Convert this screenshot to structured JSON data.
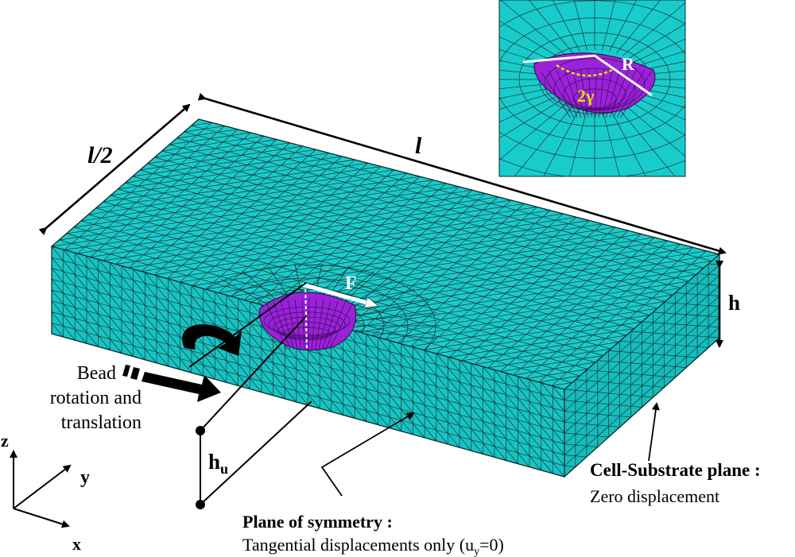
{
  "dimensions": {
    "length": "l",
    "half_width": "l/2",
    "height": "h",
    "bead_height": "h",
    "bead_height_sub": "u"
  },
  "force": {
    "label": "F"
  },
  "bead_action": {
    "line1": "Bead",
    "line2": "rotation and",
    "line3": "translation"
  },
  "axes": {
    "z": "z",
    "y": "y",
    "x": "x"
  },
  "inset": {
    "radius": "R",
    "angle": "2γ"
  },
  "symmetry_plane": {
    "title": "Plane of symmetry :",
    "desc_a": "Tangential displacements only (u",
    "desc_sub": "y",
    "desc_b": "=0)"
  },
  "substrate_plane": {
    "title": "Cell-Substrate plane :",
    "desc": "Zero displacement"
  },
  "colors": {
    "mesh_fill": "#19CCCC",
    "mesh_line": "#1a3535",
    "bead_fill": "#9A22D8",
    "background": "#FFFFFF"
  }
}
